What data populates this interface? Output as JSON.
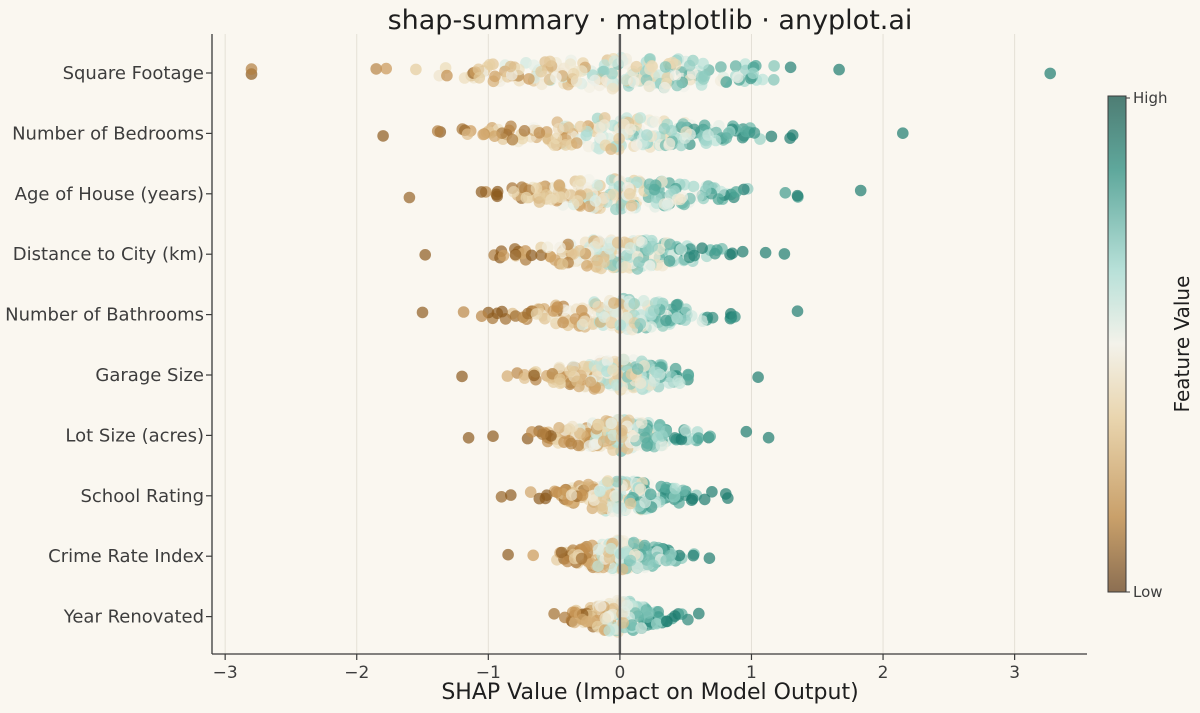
{
  "chart_data": {
    "type": "scatter",
    "subtype": "shap-summary-beeswarm",
    "title": "shap-summary · matplotlib · anyplot.ai",
    "xlabel": "SHAP Value (Impact on Model Output)",
    "xlim": [
      -3.1,
      3.55
    ],
    "xticks": [
      -3,
      -2,
      -1,
      0,
      1,
      2,
      3
    ],
    "xtick_labels": [
      "−3",
      "−2",
      "−1",
      "0",
      "1",
      "2",
      "3"
    ],
    "grid": "vertical",
    "zero_line": true,
    "colorbar": {
      "label": "Feature Value",
      "high_label": "High",
      "low_label": "Low",
      "high_color": "#1B7A6E",
      "mid_color": "#F2F0E6",
      "low_color": "#8C5A1E"
    },
    "features": [
      {
        "name": "Square Footage",
        "range": [
          -2.8,
          3.27
        ],
        "spread": 0.72
      },
      {
        "name": "Number of Bedrooms",
        "range": [
          -1.8,
          2.15
        ],
        "spread": 0.55
      },
      {
        "name": "Age of House (years)",
        "range": [
          -1.6,
          1.83
        ],
        "spread": 0.45
      },
      {
        "name": "Distance to City (km)",
        "range": [
          -1.48,
          1.25
        ],
        "spread": 0.38
      },
      {
        "name": "Number of Bathrooms",
        "range": [
          -1.5,
          1.35
        ],
        "spread": 0.38
      },
      {
        "name": "Garage Size",
        "range": [
          -1.2,
          1.05
        ],
        "spread": 0.32
      },
      {
        "name": "Lot Size (acres)",
        "range": [
          -1.15,
          1.13
        ],
        "spread": 0.3
      },
      {
        "name": "School Rating",
        "range": [
          -0.9,
          0.82
        ],
        "spread": 0.28
      },
      {
        "name": "Crime Rate Index",
        "range": [
          -0.85,
          0.68
        ],
        "spread": 0.22
      },
      {
        "name": "Year Renovated",
        "range": [
          -0.5,
          0.6
        ],
        "spread": 0.18
      }
    ],
    "points_per_feature": 200
  }
}
